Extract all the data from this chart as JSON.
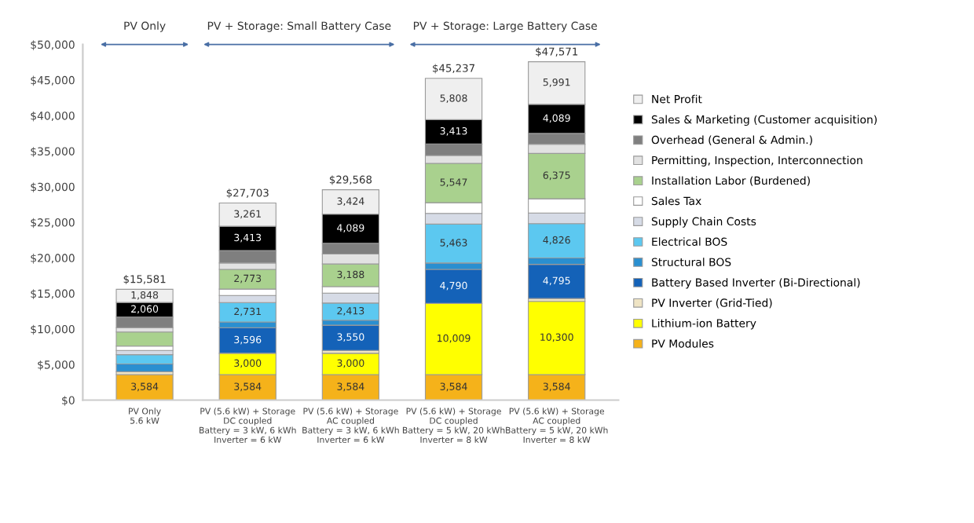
{
  "chart_data": {
    "type": "bar",
    "stacked": true,
    "categories": [
      "PV Only\n5.6 kW",
      "PV (5.6 kW) + Storage\nDC coupled\nBattery = 3 kW, 6 kWh\nInverter = 6 kW",
      "PV (5.6 kW) + Storage\nAC coupled\nBattery = 3 kW, 6 kWh\nInverter = 6 kW",
      "PV (5.6 kW) + Storage\nDC coupled\nBattery = 5 kW, 20 kWh\nInverter = 8 kW",
      "PV (5.6 kW) + Storage\nAC coupled\nBattery = 5 kW, 20 kWh\nInverter = 8 kW"
    ],
    "series": [
      {
        "name": "PV Modules",
        "color": "#f5b21a",
        "values": [
          3584,
          3584,
          3584,
          3584,
          3584
        ],
        "value_labels": [
          "3,584",
          "3,584",
          "3,584",
          "3,584",
          "3,584"
        ]
      },
      {
        "name": "Lithium-ion Battery",
        "color": "#ffff00",
        "values": [
          null,
          3000,
          3000,
          10009,
          10300
        ],
        "value_labels": [
          null,
          "3,000",
          "3,000",
          "10,009",
          "10,300"
        ]
      },
      {
        "name": "PV Inverter (Grid-Tied)",
        "color": "#efe4c4",
        "values": [
          400,
          null,
          400,
          null,
          400
        ],
        "value_labels": [
          null,
          null,
          null,
          null,
          null
        ]
      },
      {
        "name": "Battery Based Inverter (Bi-Directional)",
        "color": "#1462b8",
        "values": [
          null,
          3596,
          3550,
          4790,
          4795
        ],
        "value_labels": [
          null,
          "3,596",
          "3,550",
          "4,790",
          "4,795"
        ]
      },
      {
        "name": "Structural BOS",
        "color": "#2a8fd0",
        "values": [
          1100,
          800,
          700,
          900,
          900
        ],
        "value_labels": [
          null,
          null,
          null,
          null,
          null
        ]
      },
      {
        "name": "Electrical BOS",
        "color": "#5cc8f0",
        "values": [
          1300,
          2731,
          2413,
          5463,
          4826
        ],
        "value_labels": [
          null,
          "2,731",
          "2,413",
          "5,463",
          "4,826"
        ]
      },
      {
        "name": "Supply Chain Costs",
        "color": "#d6dbe6",
        "values": [
          600,
          1000,
          1400,
          1500,
          1500
        ],
        "value_labels": [
          null,
          null,
          null,
          null,
          null
        ]
      },
      {
        "name": "Sales Tax",
        "color": "#ffffff",
        "values": [
          600,
          900,
          900,
          1500,
          2000
        ],
        "value_labels": [
          null,
          null,
          null,
          null,
          null
        ]
      },
      {
        "name": "Installation Labor (Burdened)",
        "color": "#a9d18e",
        "values": [
          2000,
          2773,
          3188,
          5547,
          6375
        ],
        "value_labels": [
          null,
          "2,773",
          "3,188",
          "5,547",
          "6,375"
        ]
      },
      {
        "name": "Permitting, Inspection, Interconnection",
        "color": "#e2e2e2",
        "values": [
          600,
          900,
          1400,
          1100,
          1300
        ],
        "value_labels": [
          null,
          null,
          null,
          null,
          null
        ]
      },
      {
        "name": "Overhead (General & Admin.)",
        "color": "#7f7f7f",
        "values": [
          1489,
          1745,
          1520,
          1623,
          1511
        ],
        "value_labels": [
          null,
          null,
          null,
          null,
          null
        ]
      },
      {
        "name": "Sales & Marketing (Customer acquisition)",
        "color": "#000000",
        "values": [
          2060,
          3413,
          4089,
          3413,
          4089
        ],
        "value_labels": [
          "2,060",
          "3,413",
          "4,089",
          "3,413",
          "4,089"
        ]
      },
      {
        "name": "Net Profit",
        "color": "#efefef",
        "values": [
          1848,
          3261,
          3424,
          5808,
          5991
        ],
        "value_labels": [
          "1,848",
          "3,261",
          "3,424",
          "5,808",
          "5,991"
        ]
      }
    ],
    "totals": [
      "$15,581",
      "$27,703",
      "$29,568",
      "$45,237",
      "$47,571"
    ],
    "ylim": [
      0,
      50000
    ],
    "yticks": [
      {
        "value": 0,
        "label": "$0"
      },
      {
        "value": 5000,
        "label": "$5,000"
      },
      {
        "value": 10000,
        "label": "$10,000"
      },
      {
        "value": 15000,
        "label": "$15,000"
      },
      {
        "value": 20000,
        "label": "$20,000"
      },
      {
        "value": 25000,
        "label": "$25,000"
      },
      {
        "value": 30000,
        "label": "$30,000"
      },
      {
        "value": 35000,
        "label": "$35,000"
      },
      {
        "value": 40000,
        "label": "$40,000"
      },
      {
        "value": 45000,
        "label": "$45,000"
      },
      {
        "value": 50000,
        "label": "$50,000"
      }
    ],
    "annotations": [
      "PV Only",
      "PV + Storage: Small Battery Case",
      "PV + Storage: Large Battery Case"
    ],
    "legend": "right",
    "grid": false
  }
}
